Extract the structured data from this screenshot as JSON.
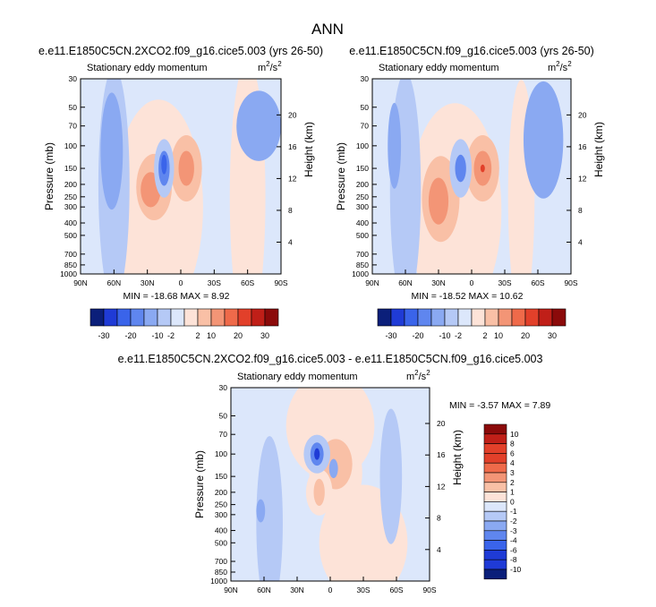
{
  "main_title": "ANN",
  "colors": {
    "palette_neg": [
      "#0b1f7a",
      "#1f3bd6",
      "#3a64ea",
      "#5f86ef",
      "#8aa9f2",
      "#b5c9f6",
      "#dce7fb"
    ],
    "palette_pos": [
      "#fde3d8",
      "#f9c0a6",
      "#f39576",
      "#ef6a4a",
      "#e2402a",
      "#c01f18",
      "#8b0a0a"
    ],
    "frame": "#000000"
  },
  "chart_data": [
    {
      "id": "panel1",
      "type": "heatmap",
      "title": "e.e11.E1850C5CN.2XCO2.f09_g16.cice5.003 (yrs 26-50)",
      "subtitle_left": "Stationary eddy momentum",
      "units_base": "m",
      "units_exp1": "2",
      "units_mid": "/s",
      "units_exp2": "2",
      "ylabel": "Pressure (mb)",
      "ylabel_right": "Height (km)",
      "x_tick_labels": [
        "90N",
        "60N",
        "30N",
        "0",
        "30S",
        "60S",
        "90S"
      ],
      "y_tick_labels": [
        "30",
        "50",
        "70",
        "100",
        "150",
        "200",
        "250",
        "300",
        "400",
        "500",
        "700",
        "850",
        "1000"
      ],
      "y_ticks_mb": [
        30,
        50,
        70,
        100,
        150,
        200,
        250,
        300,
        400,
        500,
        700,
        850,
        1000
      ],
      "height_km_ticks": [
        "4",
        "8",
        "12",
        "16",
        "20"
      ],
      "xlim": [
        90,
        -90
      ],
      "ylim_mb": [
        30,
        1000
      ],
      "min_label": "MIN = -18.68  MAX =  8.92",
      "min": -18.68,
      "max": 8.92
    },
    {
      "id": "panel2",
      "type": "heatmap",
      "title": "e.e11.E1850C5CN.f09_g16.cice5.003 (yrs 26-50)",
      "subtitle_left": "Stationary eddy momentum",
      "units_base": "m",
      "units_exp1": "2",
      "units_mid": "/s",
      "units_exp2": "2",
      "ylabel": "Pressure (mb)",
      "ylabel_right": "Height (km)",
      "x_tick_labels": [
        "90N",
        "60N",
        "30N",
        "0",
        "30S",
        "60S",
        "90S"
      ],
      "y_tick_labels": [
        "30",
        "50",
        "70",
        "100",
        "150",
        "200",
        "250",
        "300",
        "400",
        "500",
        "700",
        "850",
        "1000"
      ],
      "y_ticks_mb": [
        30,
        50,
        70,
        100,
        150,
        200,
        250,
        300,
        400,
        500,
        700,
        850,
        1000
      ],
      "height_km_ticks": [
        "4",
        "8",
        "12",
        "16",
        "20"
      ],
      "xlim": [
        90,
        -90
      ],
      "ylim_mb": [
        30,
        1000
      ],
      "min_label": "MIN = -18.52  MAX = 10.62",
      "min": -18.52,
      "max": 10.62
    },
    {
      "id": "panel3",
      "type": "heatmap",
      "title": "e.e11.E1850C5CN.2XCO2.f09_g16.cice5.003 - e.e11.E1850C5CN.f09_g16.cice5.003",
      "subtitle_left": "Stationary eddy momentum",
      "units_base": "m",
      "units_exp1": "2",
      "units_mid": "/s",
      "units_exp2": "2",
      "ylabel": "Pressure (mb)",
      "ylabel_right": "Height (km)",
      "x_tick_labels": [
        "90N",
        "60N",
        "30N",
        "0",
        "30S",
        "60S",
        "90S"
      ],
      "y_tick_labels": [
        "30",
        "50",
        "70",
        "100",
        "150",
        "200",
        "250",
        "300",
        "400",
        "500",
        "700",
        "850",
        "1000"
      ],
      "y_ticks_mb": [
        30,
        50,
        70,
        100,
        150,
        200,
        250,
        300,
        400,
        500,
        700,
        850,
        1000
      ],
      "height_km_ticks": [
        "4",
        "8",
        "12",
        "16",
        "20"
      ],
      "xlim": [
        90,
        -90
      ],
      "ylim_mb": [
        30,
        1000
      ],
      "min_label": "MIN =  -3.57  MAX =  7.89",
      "min": -3.57,
      "max": 7.89
    }
  ],
  "colorbar_horizontal": {
    "labels": [
      "-30",
      "-20",
      "-10",
      "-2",
      "2",
      "10",
      "20",
      "30"
    ]
  },
  "colorbar_vertical": {
    "labels": [
      "10",
      "8",
      "6",
      "4",
      "3",
      "2",
      "1",
      "0",
      "-1",
      "-2",
      "-3",
      "-4",
      "-6",
      "-8",
      "-10"
    ]
  }
}
